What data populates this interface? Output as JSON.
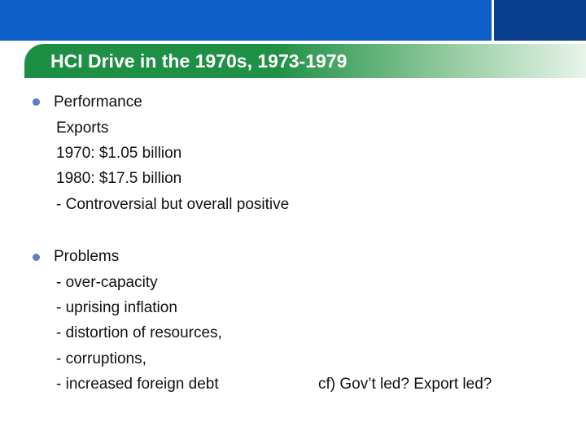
{
  "slide": {
    "title": "HCI Drive in the 1970s, 1973-1979",
    "sections": [
      {
        "heading": "Performance",
        "lines": [
          "Exports",
          "1970: $1.05 billion",
          "1980: $17.5 billion",
          "- Controversial but overall positive"
        ]
      },
      {
        "heading": "Problems",
        "lines": [
          "- over-capacity",
          "- uprising inflation",
          "- distortion of resources,",
          "- corruptions,",
          "- increased foreign debt"
        ]
      }
    ],
    "side_note": "cf) Gov’t led? Export led?"
  },
  "theme": {
    "header_blue": "#0f5fc8",
    "header_dark_blue": "#0a3f8e",
    "title_green": "#1c8f44",
    "bullet_color": "#5b7fc4"
  }
}
